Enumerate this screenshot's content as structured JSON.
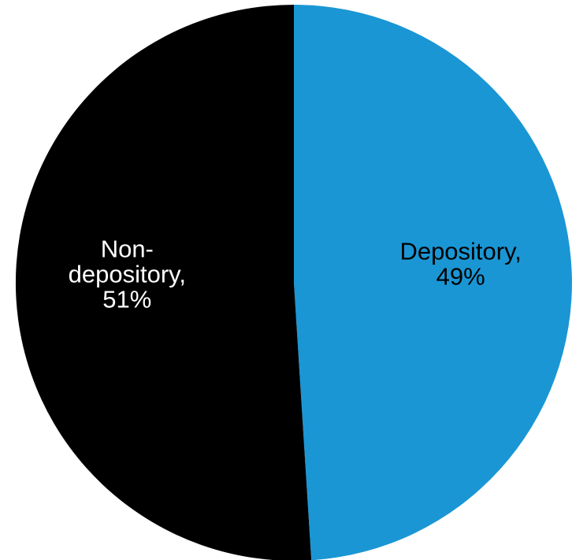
{
  "chart_data": {
    "type": "pie",
    "slices": [
      {
        "name": "Depository",
        "value": 49,
        "label_lines": [
          "Depository,",
          "49%"
        ],
        "color": "#1a96d4",
        "label_color": "#000000"
      },
      {
        "name": "Non-depository",
        "value": 51,
        "label_lines": [
          "Non-",
          "depository,",
          "51%"
        ],
        "color": "#000000",
        "label_color": "#ffffff"
      }
    ],
    "start": "12 o'clock",
    "direction": "clockwise",
    "legend": "none"
  }
}
